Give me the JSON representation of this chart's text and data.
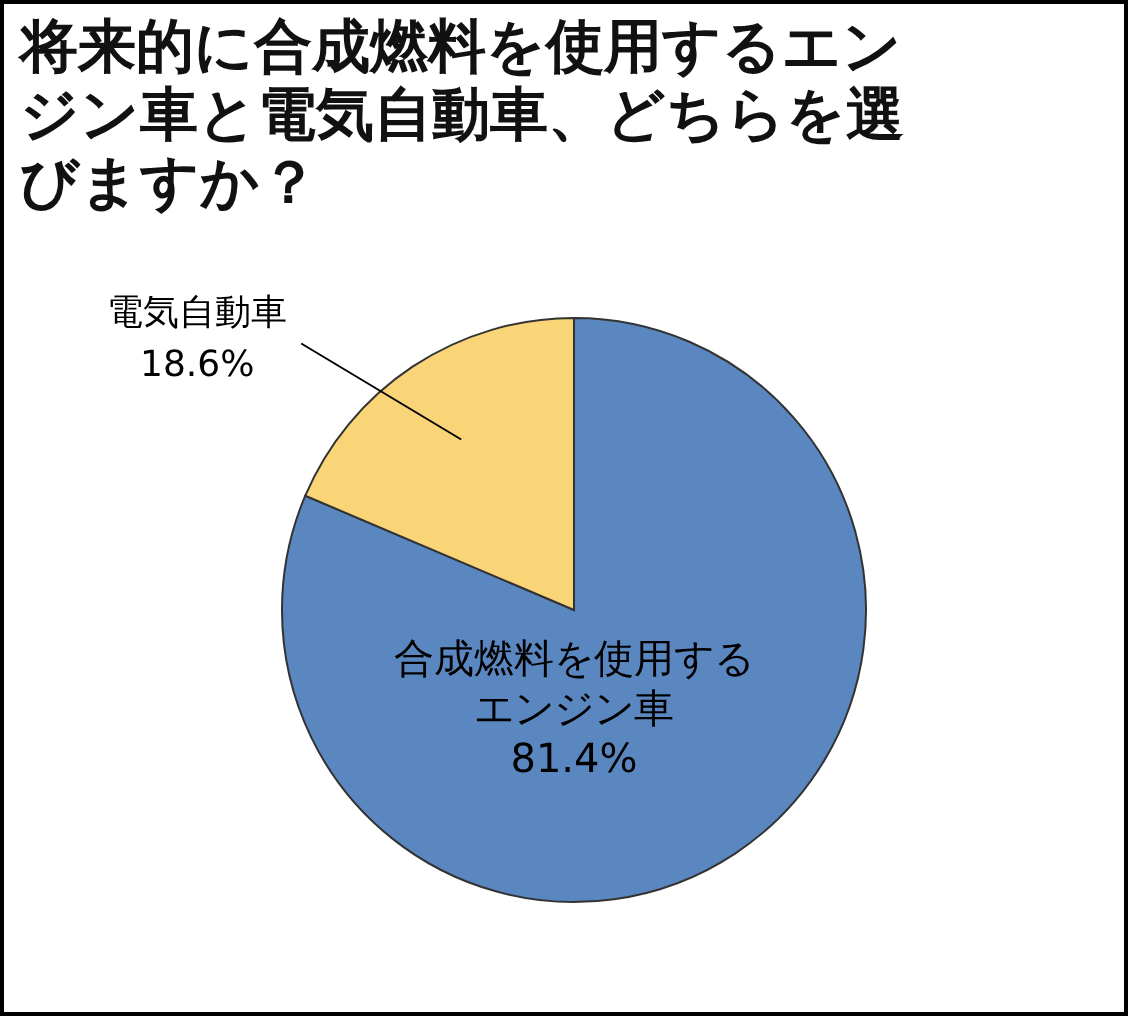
{
  "chart_data": {
    "type": "pie",
    "title": "将来的に合成燃料を使用するエンジン車と電気自動車、どちらを選びますか？",
    "categories": [
      "合成燃料を使用するエンジン車",
      "電気自動車"
    ],
    "values": [
      81.4,
      18.6
    ],
    "colors": [
      "#5b87c0",
      "#f9d577"
    ],
    "value_labels": [
      "81.4%",
      "18.6%"
    ]
  }
}
